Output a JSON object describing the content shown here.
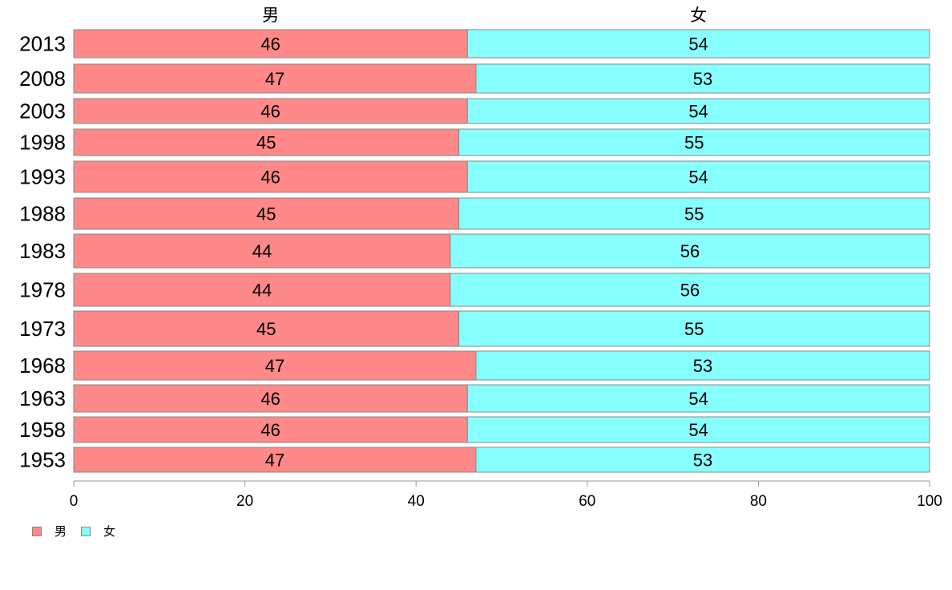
{
  "chart_data": {
    "type": "bar",
    "orientation": "horizontal",
    "stacked": true,
    "percent_stacked": true,
    "categories": [
      "2013",
      "2008",
      "2003",
      "1998",
      "1993",
      "1988",
      "1983",
      "1978",
      "1973",
      "1968",
      "1963",
      "1958",
      "1953"
    ],
    "series": [
      {
        "name": "男",
        "color": "#ff8888",
        "values": [
          46,
          47,
          46,
          45,
          46,
          45,
          44,
          44,
          45,
          47,
          46,
          46,
          47
        ]
      },
      {
        "name": "女",
        "color": "#88ffff",
        "values": [
          54,
          53,
          54,
          55,
          54,
          55,
          56,
          56,
          55,
          53,
          54,
          54,
          53
        ]
      }
    ],
    "xlim": [
      0,
      100
    ],
    "xticks": [
      "0",
      "20",
      "40",
      "60",
      "80",
      "100"
    ],
    "grid": false,
    "legend_position": "bottom-left"
  }
}
